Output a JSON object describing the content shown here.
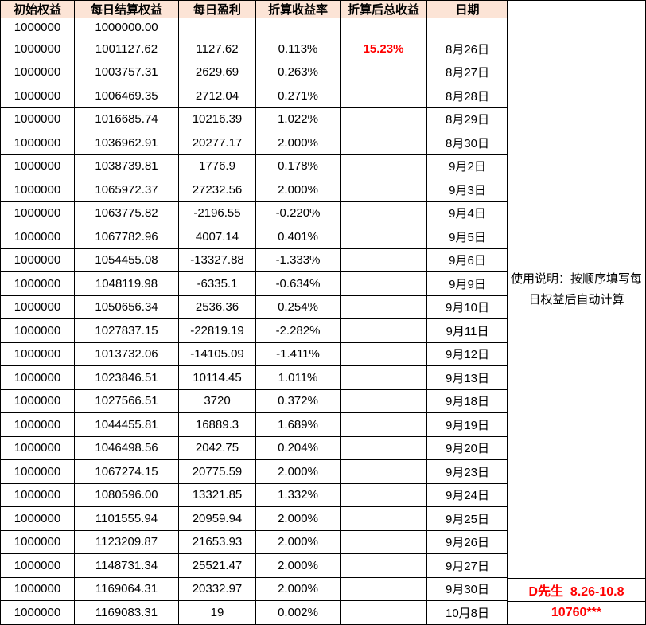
{
  "colors": {
    "header_fill": "#FCE4D6",
    "highlight_red": "#FF0000",
    "border": "#000000",
    "text": "#000000"
  },
  "table": {
    "headers": [
      "初始权益",
      "每日结算权益",
      "每日盈利",
      "折算收益率",
      "折算后总收益",
      "日期"
    ],
    "highlight": {
      "row": 1,
      "col": 4,
      "value": "15.23%"
    },
    "rows": [
      [
        "1000000",
        "1000000.00",
        "",
        "",
        "",
        ""
      ],
      [
        "1000000",
        "1001127.62",
        "1127.62",
        "0.113%",
        "15.23%",
        "8月26日"
      ],
      [
        "1000000",
        "1003757.31",
        "2629.69",
        "0.263%",
        "",
        "8月27日"
      ],
      [
        "1000000",
        "1006469.35",
        "2712.04",
        "0.271%",
        "",
        "8月28日"
      ],
      [
        "1000000",
        "1016685.74",
        "10216.39",
        "1.022%",
        "",
        "8月29日"
      ],
      [
        "1000000",
        "1036962.91",
        "20277.17",
        "2.000%",
        "",
        "8月30日"
      ],
      [
        "1000000",
        "1038739.81",
        "1776.9",
        "0.178%",
        "",
        "9月2日"
      ],
      [
        "1000000",
        "1065972.37",
        "27232.56",
        "2.000%",
        "",
        "9月3日"
      ],
      [
        "1000000",
        "1063775.82",
        "-2196.55",
        "-0.220%",
        "",
        "9月4日"
      ],
      [
        "1000000",
        "1067782.96",
        "4007.14",
        "0.401%",
        "",
        "9月5日"
      ],
      [
        "1000000",
        "1054455.08",
        "-13327.88",
        "-1.333%",
        "",
        "9月6日"
      ],
      [
        "1000000",
        "1048119.98",
        "-6335.1",
        "-0.634%",
        "",
        "9月9日"
      ],
      [
        "1000000",
        "1050656.34",
        "2536.36",
        "0.254%",
        "",
        "9月10日"
      ],
      [
        "1000000",
        "1027837.15",
        "-22819.19",
        "-2.282%",
        "",
        "9月11日"
      ],
      [
        "1000000",
        "1013732.06",
        "-14105.09",
        "-1.411%",
        "",
        "9月12日"
      ],
      [
        "1000000",
        "1023846.51",
        "10114.45",
        "1.011%",
        "",
        "9月13日"
      ],
      [
        "1000000",
        "1027566.51",
        "3720",
        "0.372%",
        "",
        "9月18日"
      ],
      [
        "1000000",
        "1044455.81",
        "16889.3",
        "1.689%",
        "",
        "9月19日"
      ],
      [
        "1000000",
        "1046498.56",
        "2042.75",
        "0.204%",
        "",
        "9月20日"
      ],
      [
        "1000000",
        "1067274.15",
        "20775.59",
        "2.000%",
        "",
        "9月23日"
      ],
      [
        "1000000",
        "1080596.00",
        "13321.85",
        "1.332%",
        "",
        "9月24日"
      ],
      [
        "1000000",
        "1101555.94",
        "20959.94",
        "2.000%",
        "",
        "9月25日"
      ],
      [
        "1000000",
        "1123209.87",
        "21653.93",
        "2.000%",
        "",
        "9月26日"
      ],
      [
        "1000000",
        "1148731.34",
        "25521.47",
        "2.000%",
        "",
        "9月27日"
      ],
      [
        "1000000",
        "1169064.31",
        "20332.97",
        "2.000%",
        "",
        "9月30日"
      ],
      [
        "1000000",
        "1169083.31",
        "19",
        "0.002%",
        "",
        "10月8日"
      ]
    ]
  },
  "side_panel": {
    "note_line1": "使用说明：按顺序填写每",
    "note_line2": "日权益后自动计算",
    "owner": "D先生  8.26-10.8",
    "account": "10760***"
  }
}
